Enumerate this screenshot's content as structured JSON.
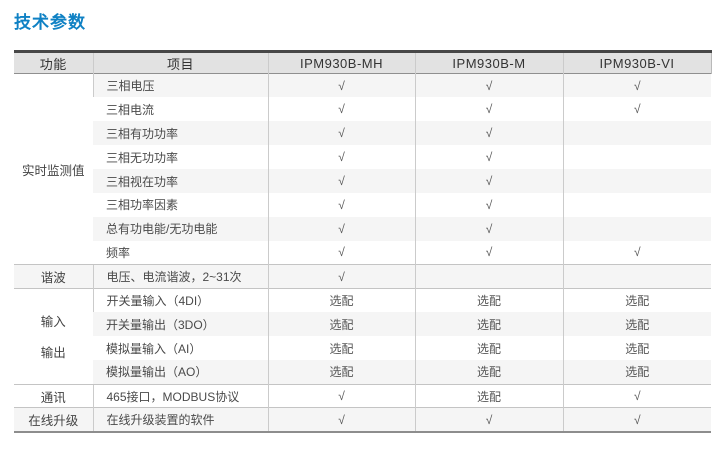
{
  "page": {
    "title": "技术参数",
    "title_color": "#0f81c4"
  },
  "table": {
    "columns": [
      "功能",
      "项目",
      "IPM930B-MH",
      "IPM930B-M",
      "IPM930B-VI"
    ],
    "check_symbol": "√",
    "optional_label": "选配",
    "groups": [
      {
        "function_lines": [
          "实时监测值"
        ],
        "rows": [
          {
            "item": "三相电压",
            "values": [
              "√",
              "√",
              "√"
            ]
          },
          {
            "item": "三相电流",
            "values": [
              "√",
              "√",
              "√"
            ]
          },
          {
            "item": "三相有功功率",
            "values": [
              "√",
              "√",
              ""
            ]
          },
          {
            "item": "三相无功功率",
            "values": [
              "√",
              "√",
              ""
            ]
          },
          {
            "item": "三相视在功率",
            "values": [
              "√",
              "√",
              ""
            ]
          },
          {
            "item": "三相功率因素",
            "values": [
              "√",
              "√",
              ""
            ]
          },
          {
            "item": "总有功电能/无功电能",
            "values": [
              "√",
              "√",
              ""
            ]
          },
          {
            "item": "频率",
            "values": [
              "√",
              "√",
              "√"
            ]
          }
        ]
      },
      {
        "function_lines": [
          "谐波"
        ],
        "rows": [
          {
            "item": "电压、电流谐波，2~31次",
            "values": [
              "√",
              "",
              ""
            ]
          }
        ]
      },
      {
        "function_lines": [
          "输入",
          "输出"
        ],
        "rows": [
          {
            "item": "开关量输入（4DI）",
            "values": [
              "选配",
              "选配",
              "选配"
            ]
          },
          {
            "item": "开关量输出（3DO）",
            "values": [
              "选配",
              "选配",
              "选配"
            ]
          },
          {
            "item": "模拟量输入（AI）",
            "values": [
              "选配",
              "选配",
              "选配"
            ]
          },
          {
            "item": "模拟量输出（AO）",
            "values": [
              "选配",
              "选配",
              "选配"
            ]
          }
        ]
      },
      {
        "function_lines": [
          "通讯"
        ],
        "rows": [
          {
            "item": "465接口，MODBUS协议",
            "values": [
              "√",
              "选配",
              "√"
            ]
          }
        ]
      },
      {
        "function_lines": [
          "在线升级"
        ],
        "rows": [
          {
            "item": "在线升级装置的软件",
            "values": [
              "√",
              "√",
              "√"
            ]
          }
        ]
      }
    ]
  }
}
